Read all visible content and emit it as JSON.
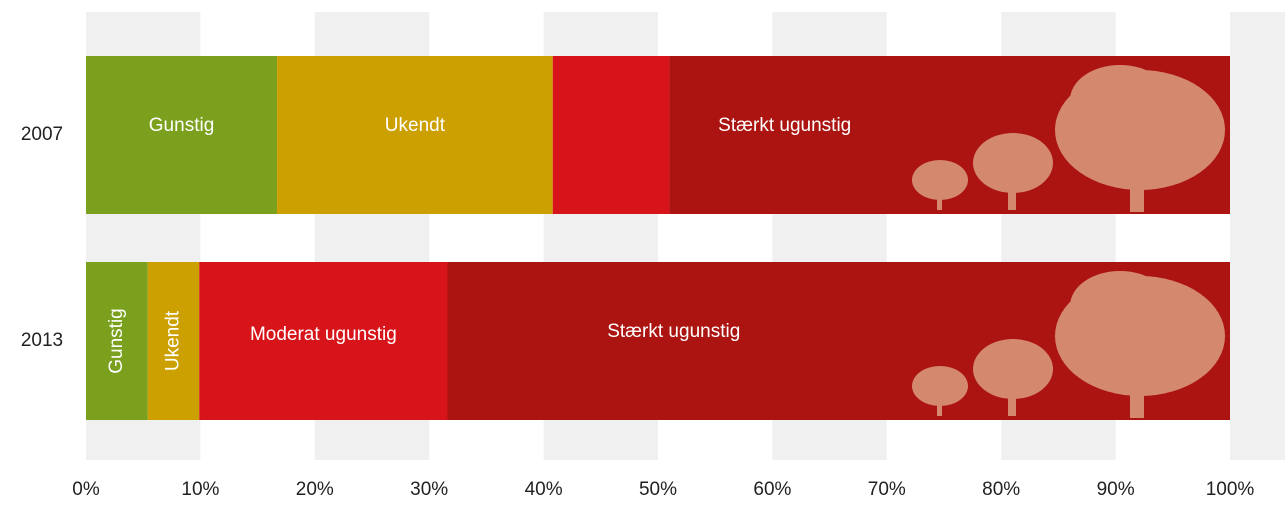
{
  "chart_data": {
    "type": "stacked-barh",
    "categories": [
      "2007",
      "2013"
    ],
    "series": [
      {
        "name": "Gunstig",
        "color": "#7aa01e",
        "values": [
          16.7,
          5.4
        ]
      },
      {
        "name": "Ukendt",
        "color": "#cca000",
        "values": [
          24.1,
          4.5
        ]
      },
      {
        "name": "Moderat ugunstig",
        "color": "#d7141a",
        "values": [
          10.2,
          21.7
        ]
      },
      {
        "name": "Stærkt ugunstig",
        "color": "#ab1410",
        "values": [
          49.0,
          68.4
        ]
      }
    ],
    "xlim": [
      0,
      100
    ],
    "xticks": [
      {
        "value": 0,
        "label": "0%"
      },
      {
        "value": 10,
        "label": "10%"
      },
      {
        "value": 20,
        "label": "20%"
      },
      {
        "value": 30,
        "label": "30%"
      },
      {
        "value": 40,
        "label": "40%"
      },
      {
        "value": 50,
        "label": "50%"
      },
      {
        "value": 60,
        "label": "60%"
      },
      {
        "value": 70,
        "label": "70%"
      },
      {
        "value": 80,
        "label": "80%"
      },
      {
        "value": 90,
        "label": "90%"
      },
      {
        "value": 100,
        "label": "100%"
      }
    ],
    "grid": true
  }
}
